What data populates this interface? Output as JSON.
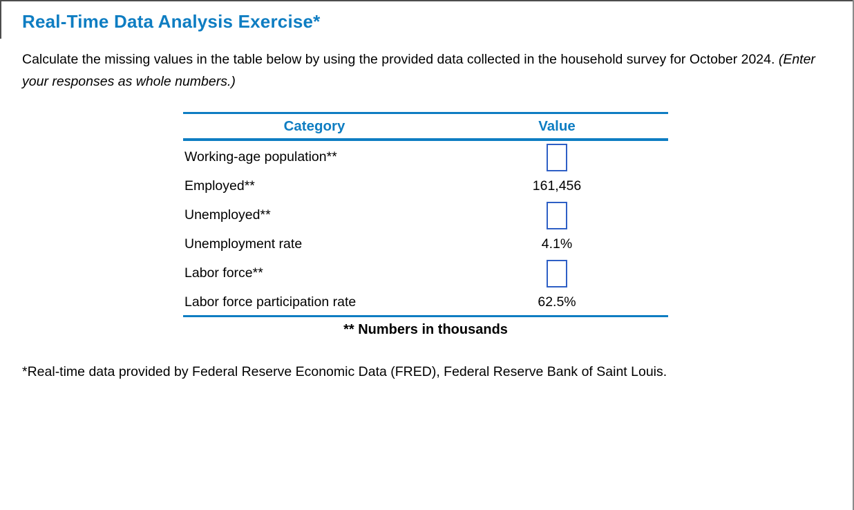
{
  "page": {
    "title": "Real-Time Data Analysis Exercise*",
    "instructions_normal": "Calculate the missing values in the table below by using the provided data collected in the household survey for October 2024. ",
    "instructions_italic": "(Enter your responses as whole numbers.)",
    "footnote": "*Real-time data provided by Federal Reserve Economic Data (FRED), Federal Reserve Bank of Saint Louis."
  },
  "table": {
    "headers": {
      "category": "Category",
      "value": "Value"
    },
    "rows": [
      {
        "category": "Working-age population**",
        "value": "",
        "has_input": true
      },
      {
        "category": "Employed**",
        "value": "161,456",
        "has_input": false
      },
      {
        "category": "Unemployed**",
        "value": "",
        "has_input": true
      },
      {
        "category": "Unemployment rate",
        "value": "4.1%",
        "has_input": false
      },
      {
        "category": "Labor force**",
        "value": "",
        "has_input": true
      },
      {
        "category": "Labor force participation rate",
        "value": "62.5%",
        "has_input": false
      }
    ],
    "caption": "** Numbers in thousands"
  },
  "colors": {
    "accent_blue": "#0E7DC2",
    "input_border_blue": "#2E5FC5"
  }
}
